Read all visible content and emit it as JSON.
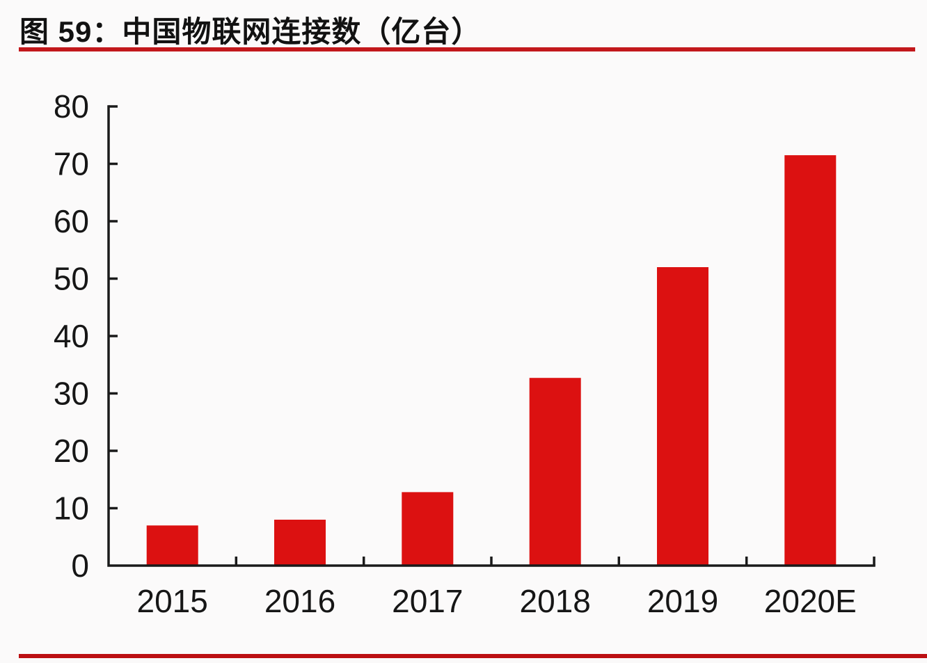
{
  "page": {
    "background": "#FBFAFA"
  },
  "header": {
    "title": "图 59：中国物联网连接数（亿台）",
    "underline_color": "#C2181B"
  },
  "footer": {
    "rule_color": "#BC1013"
  },
  "chart_data": {
    "type": "bar",
    "title": "中国物联网连接数（亿台）",
    "figure_label": "图 59",
    "categories": [
      "2015",
      "2016",
      "2017",
      "2018",
      "2019",
      "2020E"
    ],
    "values": [
      7,
      8,
      12.8,
      32.7,
      52,
      71.5
    ],
    "series_name": "中国物联网连接数",
    "unit": "亿台",
    "ylim": [
      0,
      80
    ],
    "ytick_step": 10,
    "ytick_labels": [
      "0",
      "10",
      "20",
      "30",
      "40",
      "50",
      "60",
      "70",
      "80"
    ],
    "xlabel": "",
    "ylabel": "",
    "grid": false,
    "legend": null,
    "bar_color": "#DC1111",
    "axis_color": "#1A1A1A",
    "tick_color": "#1A1A1A",
    "label_color": "#161616"
  }
}
